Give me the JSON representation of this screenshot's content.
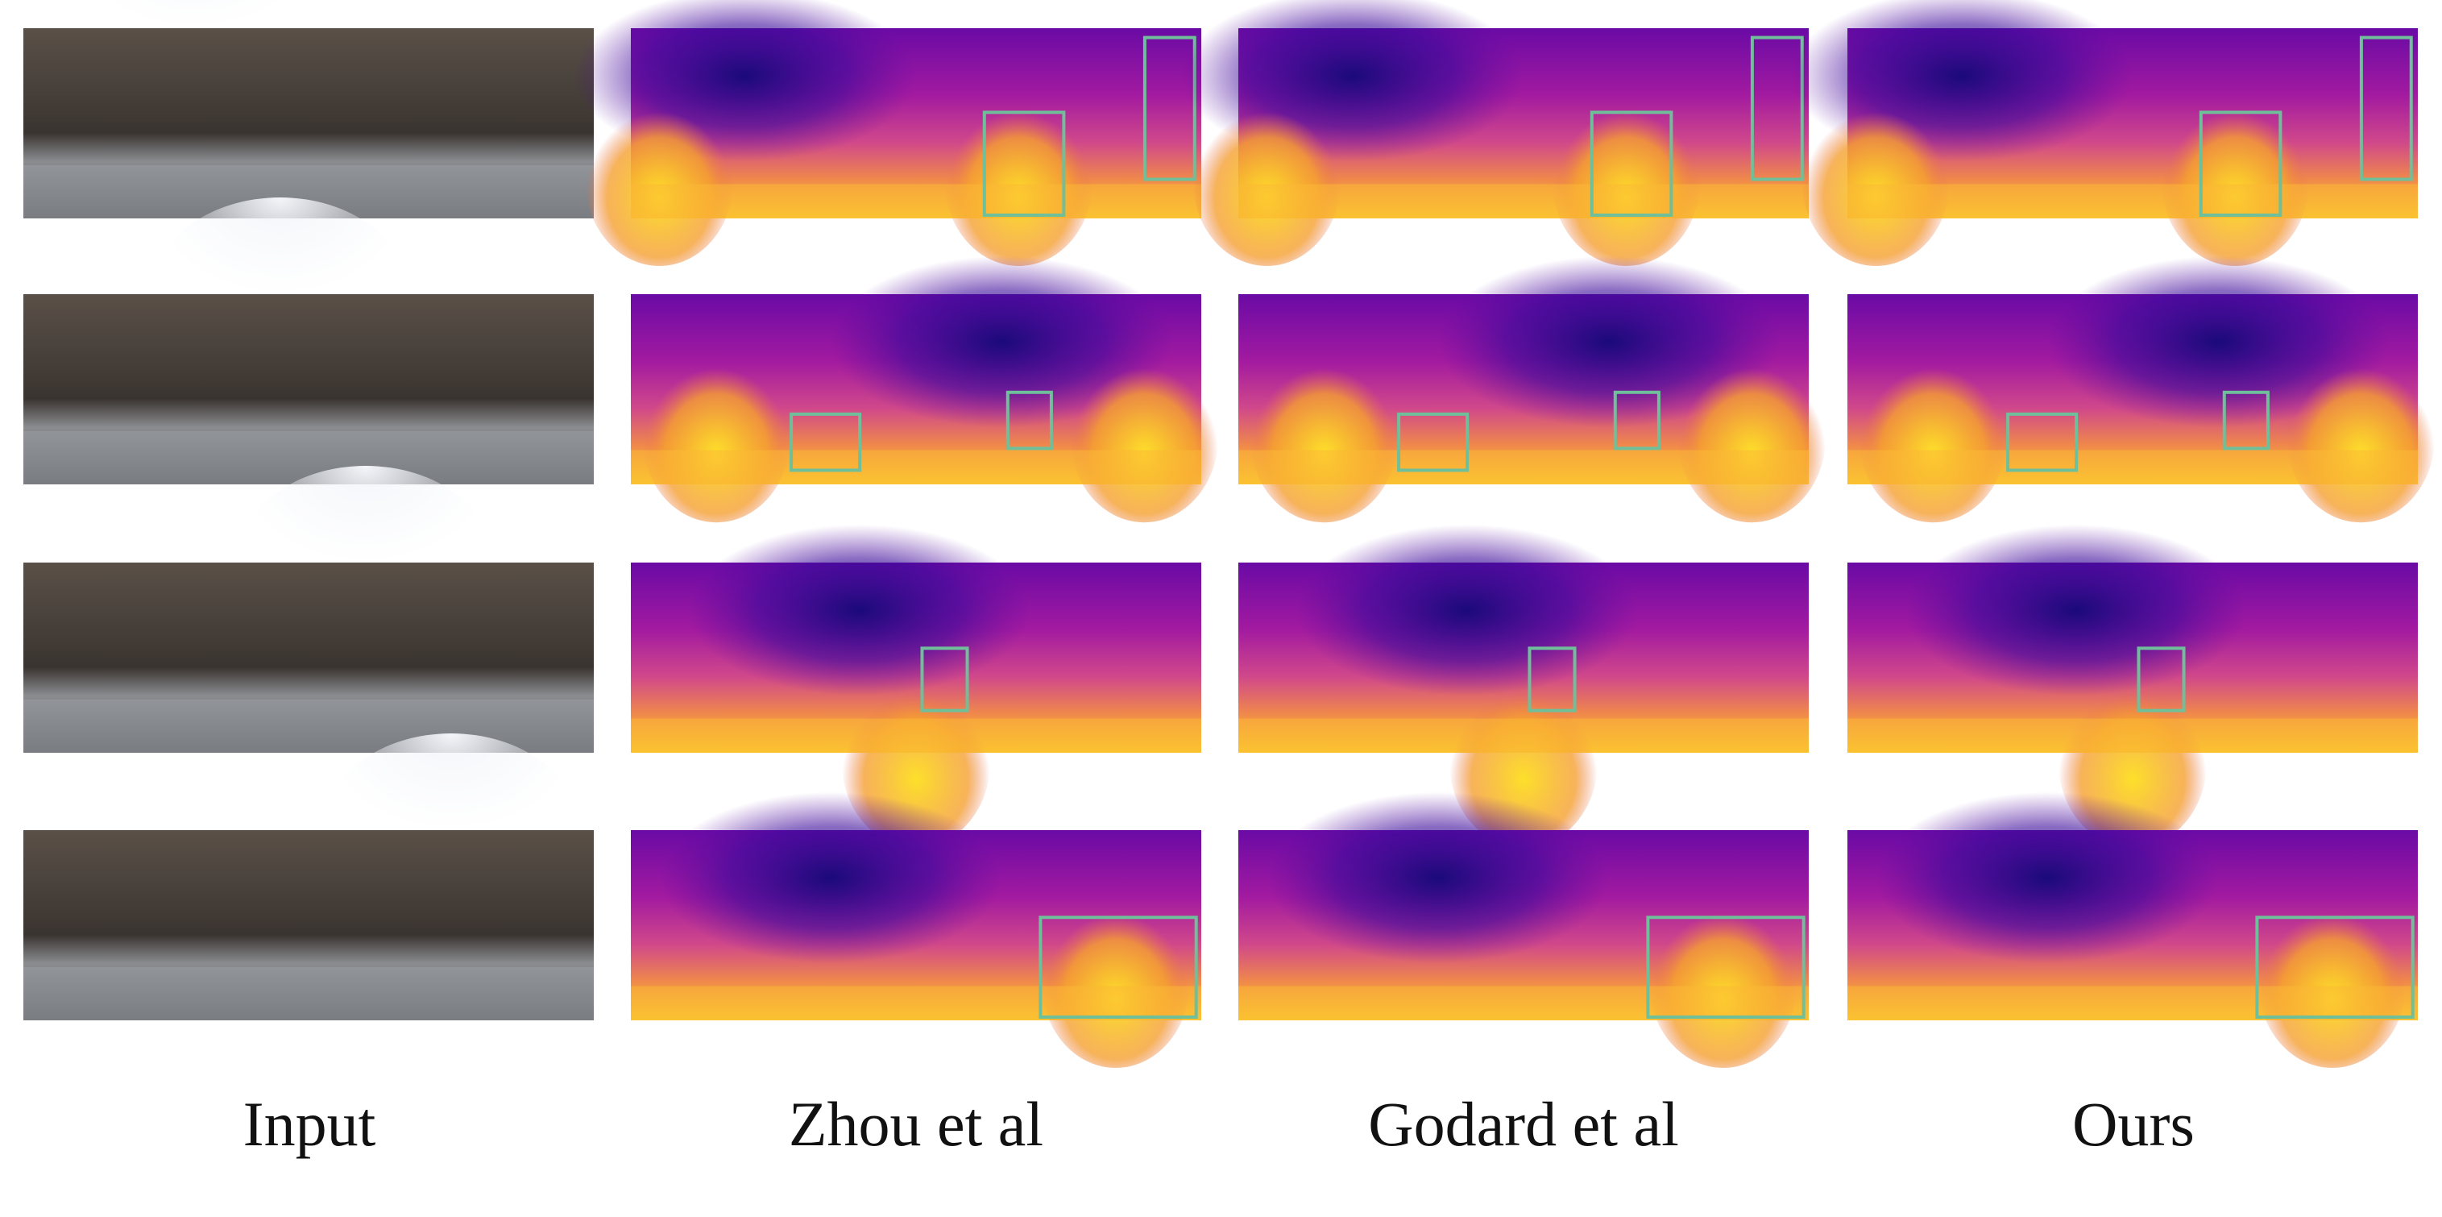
{
  "columns": [
    "Input",
    "Zhou et al",
    "Godard et al",
    "Ours"
  ]
}
